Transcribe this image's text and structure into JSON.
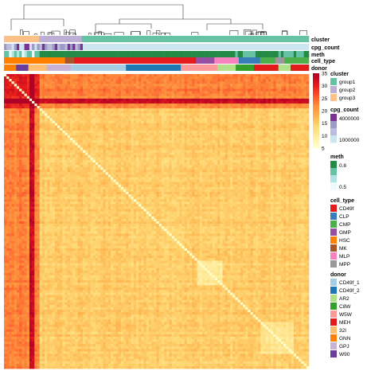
{
  "chart_data": {
    "type": "heatmap",
    "value_range": [
      5,
      35
    ],
    "colorbar": {
      "ticks": [
        35,
        30,
        25,
        20,
        15,
        10,
        5
      ],
      "colors": [
        "#ffffcc",
        "#ffeda0",
        "#fed976",
        "#feb24c",
        "#fd8d3c",
        "#fc4e2a",
        "#e31a1c",
        "#b10026"
      ]
    },
    "annotation_tracks": [
      "cluster",
      "cpg_count",
      "meth",
      "cell_type",
      "donor"
    ],
    "legends": {
      "cluster": {
        "title": "cluster",
        "items": [
          {
            "label": "group1",
            "color": "#66c2a5"
          },
          {
            "label": "group2",
            "color": "#bcaed4"
          },
          {
            "label": "group3",
            "color": "#fdc086"
          }
        ]
      },
      "cpg_count": {
        "title": "cpg_count",
        "tick_labels": [
          "4000000",
          "1000000"
        ],
        "colors": [
          "#7b3294",
          "#9e9ac8",
          "#bcbddc",
          "#cbe6f0"
        ]
      },
      "meth": {
        "title": "meth",
        "tick_labels": [
          "0.8",
          "0.5"
        ],
        "colors": [
          "#238b45",
          "#66c2a4",
          "#b2e2e2",
          "#edf8fb"
        ]
      },
      "cell_type": {
        "title": "cell_type",
        "items": [
          {
            "label": "CD49f",
            "color": "#e41a1c"
          },
          {
            "label": "CLP",
            "color": "#377eb8"
          },
          {
            "label": "CMP",
            "color": "#4daf4a"
          },
          {
            "label": "GMP",
            "color": "#984ea3"
          },
          {
            "label": "HSC",
            "color": "#ff7f00"
          },
          {
            "label": "MK",
            "color": "#a65628"
          },
          {
            "label": "MLP",
            "color": "#f781bf"
          },
          {
            "label": "MPP",
            "color": "#999999"
          }
        ]
      },
      "donor": {
        "title": "donor",
        "items": [
          {
            "label": "CD49f_1",
            "color": "#a6cee3"
          },
          {
            "label": "CD49f_2",
            "color": "#1f78b4"
          },
          {
            "label": "AR2",
            "color": "#b2df8a"
          },
          {
            "label": "C8W",
            "color": "#33a02c"
          },
          {
            "label": "W5W",
            "color": "#fb9a99"
          },
          {
            "label": "MEH",
            "color": "#e31a1c"
          },
          {
            "label": "32I",
            "color": "#fdbf6f"
          },
          {
            "label": "GNN",
            "color": "#ff7f00"
          },
          {
            "label": "GPJ",
            "color": "#cab2d6"
          },
          {
            "label": "W90",
            "color": "#6a3d9a"
          }
        ]
      }
    },
    "cluster_fractions": [
      {
        "group": "group3",
        "fraction": 0.115
      },
      {
        "group": "group2",
        "fraction": 0.14
      },
      {
        "group": "group1",
        "fraction": 0.745
      }
    ],
    "cell_type_fractions": [
      {
        "label": "HSC",
        "fraction": 0.2
      },
      {
        "label": "MK",
        "fraction": 0.03
      },
      {
        "label": "CD49f",
        "fraction": 0.4
      },
      {
        "label": "GMP",
        "fraction": 0.06
      },
      {
        "label": "MLP",
        "fraction": 0.08
      },
      {
        "label": "CLP",
        "fraction": 0.07
      },
      {
        "label": "CMP",
        "fraction": 0.05
      },
      {
        "label": "MPP",
        "fraction": 0.03
      },
      {
        "label": "CMP",
        "fraction": 0.08
      }
    ],
    "donor_fractions": [
      {
        "label": "GNN",
        "fraction": 0.04
      },
      {
        "label": "W90",
        "fraction": 0.04
      },
      {
        "label": "32I",
        "fraction": 0.06
      },
      {
        "label": "GPJ",
        "fraction": 0.08
      },
      {
        "label": "CD49f_1",
        "fraction": 0.18
      },
      {
        "label": "CD49f_2",
        "fraction": 0.18
      },
      {
        "label": "W5W",
        "fraction": 0.12
      },
      {
        "label": "AR2",
        "fraction": 0.06
      },
      {
        "label": "C8W",
        "fraction": 0.06
      },
      {
        "label": "MEH",
        "fraction": 0.08
      },
      {
        "label": "AR2",
        "fraction": 0.04
      },
      {
        "label": "MEH",
        "fraction": 0.06
      }
    ]
  }
}
